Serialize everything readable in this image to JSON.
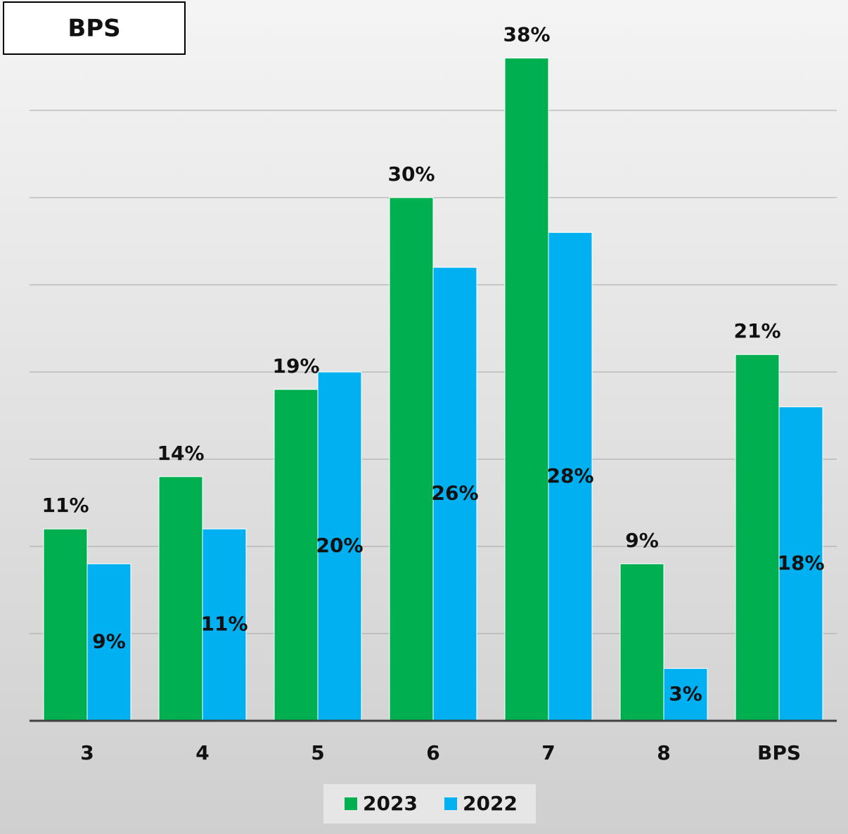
{
  "chart_data": {
    "type": "bar",
    "title": "BPS",
    "categories": [
      "3",
      "4",
      "5",
      "6",
      "7",
      "8",
      "BPS"
    ],
    "series": [
      {
        "name": "2023",
        "color": "#00b050",
        "values": [
          11,
          14,
          19,
          30,
          38,
          9,
          21
        ],
        "value_labels": [
          "11%",
          "14%",
          "19%",
          "30%",
          "38%",
          "9%",
          "21%"
        ],
        "label_position": "outside_end"
      },
      {
        "name": "2022",
        "color": "#00b0f0",
        "values": [
          9,
          11,
          20,
          26,
          28,
          3,
          18
        ],
        "value_labels": [
          "9%",
          "11%",
          "20%",
          "26%",
          "28%",
          "3%",
          "18%"
        ],
        "label_position": "center"
      }
    ],
    "ylim": [
      0,
      40
    ],
    "yticks": [
      0,
      5,
      10,
      15,
      20,
      25,
      30,
      35
    ],
    "grid": true,
    "legend": "bottom"
  }
}
